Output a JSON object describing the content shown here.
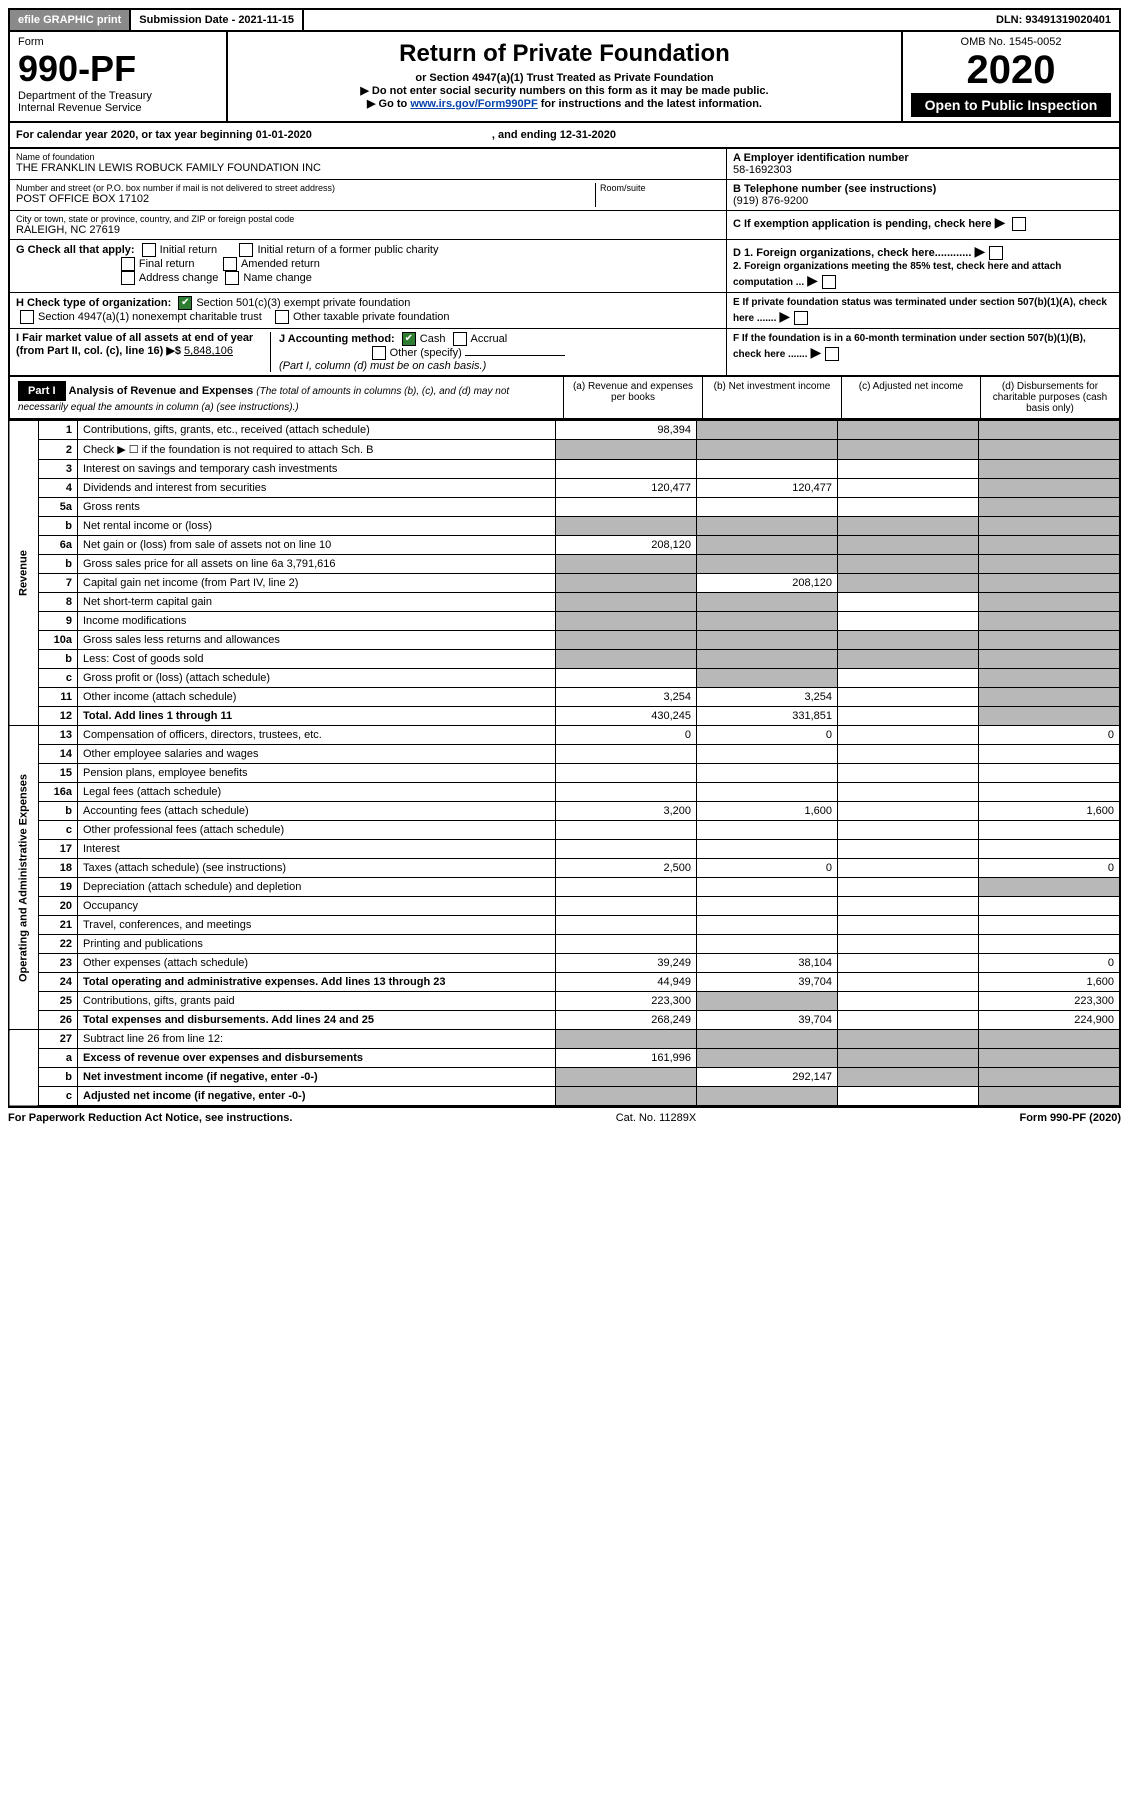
{
  "top": {
    "efile": "efile GRAPHIC print",
    "subdate_label": "Submission Date - 2021-11-15",
    "dln": "DLN: 93491319020401"
  },
  "header": {
    "form_label": "Form",
    "form_num": "990-PF",
    "dept": "Department of the Treasury",
    "irs": "Internal Revenue Service",
    "title": "Return of Private Foundation",
    "subtitle": "or Section 4947(a)(1) Trust Treated as Private Foundation",
    "note1": "▶ Do not enter social security numbers on this form as it may be made public.",
    "note2_pre": "▶ Go to ",
    "note2_link": "www.irs.gov/Form990PF",
    "note2_post": " for instructions and the latest information.",
    "omb": "OMB No. 1545-0052",
    "year": "2020",
    "open": "Open to Public Inspection"
  },
  "cal": {
    "text": "For calendar year 2020, or tax year beginning 01-01-2020",
    "ending": ", and ending 12-31-2020"
  },
  "entity": {
    "name_label": "Name of foundation",
    "name": "THE FRANKLIN LEWIS ROBUCK FAMILY FOUNDATION INC",
    "addr_label": "Number and street (or P.O. box number if mail is not delivered to street address)",
    "addr": "POST OFFICE BOX 17102",
    "room_label": "Room/suite",
    "city_label": "City or town, state or province, country, and ZIP or foreign postal code",
    "city": "RALEIGH, NC  27619",
    "ein_label": "A Employer identification number",
    "ein": "58-1692303",
    "phone_label": "B Telephone number (see instructions)",
    "phone": "(919) 876-9200",
    "c_label": "C If exemption application is pending, check here"
  },
  "checks": {
    "g_label": "G Check all that apply:",
    "g1": "Initial return",
    "g2": "Initial return of a former public charity",
    "g3": "Final return",
    "g4": "Amended return",
    "g5": "Address change",
    "g6": "Name change",
    "h_label": "H Check type of organization:",
    "h1": "Section 501(c)(3) exempt private foundation",
    "h2": "Section 4947(a)(1) nonexempt charitable trust",
    "h3": "Other taxable private foundation",
    "i_label": "I Fair market value of all assets at end of year (from Part II, col. (c), line 16) ▶$",
    "i_val": "5,848,106",
    "j_label": "J Accounting method:",
    "j1": "Cash",
    "j2": "Accrual",
    "j3": "Other (specify)",
    "j_note": "(Part I, column (d) must be on cash basis.)",
    "d1": "D 1. Foreign organizations, check here............",
    "d2": "2. Foreign organizations meeting the 85% test, check here and attach computation ...",
    "e": "E  If private foundation status was terminated under section 507(b)(1)(A), check here .......",
    "f": "F  If the foundation is in a 60-month termination under section 507(b)(1)(B), check here ......."
  },
  "part1": {
    "label": "Part I",
    "title": "Analysis of Revenue and Expenses",
    "note": "(The total of amounts in columns (b), (c), and (d) may not necessarily equal the amounts in column (a) (see instructions).)",
    "colA": "(a)   Revenue and expenses per books",
    "colB": "(b)   Net investment income",
    "colC": "(c)   Adjusted net income",
    "colD": "(d)  Disbursements for charitable purposes (cash basis only)"
  },
  "side": {
    "rev": "Revenue",
    "exp": "Operating and Administrative Expenses"
  },
  "rows": {
    "r1": {
      "n": "1",
      "d": "Contributions, gifts, grants, etc., received (attach schedule)",
      "a": "98,394"
    },
    "r2": {
      "n": "2",
      "d": "Check ▶ ☐ if the foundation is not required to attach Sch. B"
    },
    "r3": {
      "n": "3",
      "d": "Interest on savings and temporary cash investments"
    },
    "r4": {
      "n": "4",
      "d": "Dividends and interest from securities",
      "a": "120,477",
      "b": "120,477"
    },
    "r5a": {
      "n": "5a",
      "d": "Gross rents"
    },
    "r5b": {
      "n": "b",
      "d": "Net rental income or (loss)"
    },
    "r6a": {
      "n": "6a",
      "d": "Net gain or (loss) from sale of assets not on line 10",
      "a": "208,120"
    },
    "r6b": {
      "n": "b",
      "d": "Gross sales price for all assets on line 6a",
      "v": "3,791,616"
    },
    "r7": {
      "n": "7",
      "d": "Capital gain net income (from Part IV, line 2)",
      "b": "208,120"
    },
    "r8": {
      "n": "8",
      "d": "Net short-term capital gain"
    },
    "r9": {
      "n": "9",
      "d": "Income modifications"
    },
    "r10a": {
      "n": "10a",
      "d": "Gross sales less returns and allowances"
    },
    "r10b": {
      "n": "b",
      "d": "Less: Cost of goods sold"
    },
    "r10c": {
      "n": "c",
      "d": "Gross profit or (loss) (attach schedule)"
    },
    "r11": {
      "n": "11",
      "d": "Other income (attach schedule)",
      "a": "3,254",
      "b": "3,254"
    },
    "r12": {
      "n": "12",
      "d": "Total. Add lines 1 through 11",
      "a": "430,245",
      "b": "331,851"
    },
    "r13": {
      "n": "13",
      "d": "Compensation of officers, directors, trustees, etc.",
      "a": "0",
      "b": "0",
      "dd": "0"
    },
    "r14": {
      "n": "14",
      "d": "Other employee salaries and wages"
    },
    "r15": {
      "n": "15",
      "d": "Pension plans, employee benefits"
    },
    "r16a": {
      "n": "16a",
      "d": "Legal fees (attach schedule)"
    },
    "r16b": {
      "n": "b",
      "d": "Accounting fees (attach schedule)",
      "a": "3,200",
      "b": "1,600",
      "dd": "1,600"
    },
    "r16c": {
      "n": "c",
      "d": "Other professional fees (attach schedule)"
    },
    "r17": {
      "n": "17",
      "d": "Interest"
    },
    "r18": {
      "n": "18",
      "d": "Taxes (attach schedule) (see instructions)",
      "a": "2,500",
      "b": "0",
      "dd": "0"
    },
    "r19": {
      "n": "19",
      "d": "Depreciation (attach schedule) and depletion"
    },
    "r20": {
      "n": "20",
      "d": "Occupancy"
    },
    "r21": {
      "n": "21",
      "d": "Travel, conferences, and meetings"
    },
    "r22": {
      "n": "22",
      "d": "Printing and publications"
    },
    "r23": {
      "n": "23",
      "d": "Other expenses (attach schedule)",
      "a": "39,249",
      "b": "38,104",
      "dd": "0"
    },
    "r24": {
      "n": "24",
      "d": "Total operating and administrative expenses. Add lines 13 through 23",
      "a": "44,949",
      "b": "39,704",
      "dd": "1,600"
    },
    "r25": {
      "n": "25",
      "d": "Contributions, gifts, grants paid",
      "a": "223,300",
      "dd": "223,300"
    },
    "r26": {
      "n": "26",
      "d": "Total expenses and disbursements. Add lines 24 and 25",
      "a": "268,249",
      "b": "39,704",
      "dd": "224,900"
    },
    "r27": {
      "n": "27",
      "d": "Subtract line 26 from line 12:"
    },
    "r27a": {
      "n": "a",
      "d": "Excess of revenue over expenses and disbursements",
      "a": "161,996"
    },
    "r27b": {
      "n": "b",
      "d": "Net investment income (if negative, enter -0-)",
      "b": "292,147"
    },
    "r27c": {
      "n": "c",
      "d": "Adjusted net income (if negative, enter -0-)"
    }
  },
  "footer": {
    "left": "For Paperwork Reduction Act Notice, see instructions.",
    "mid": "Cat. No. 11289X",
    "right": "Form 990-PF (2020)"
  }
}
